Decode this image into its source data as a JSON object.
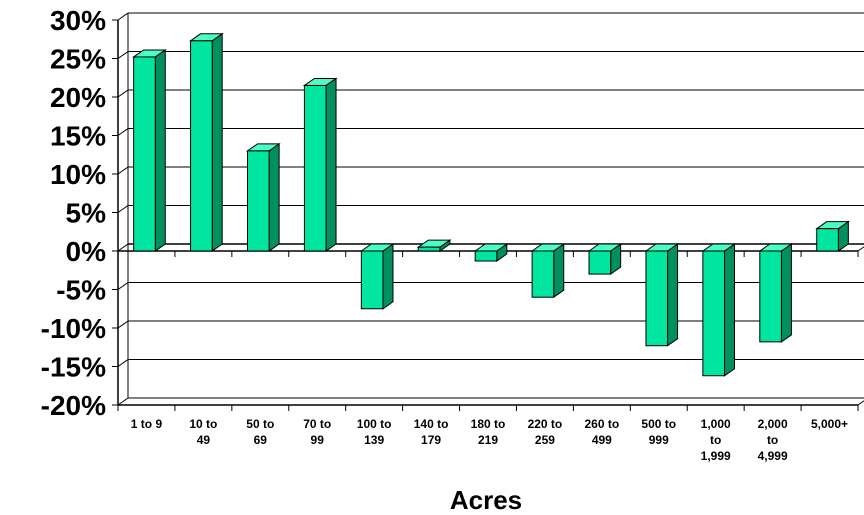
{
  "chart_data": {
    "type": "bar",
    "title": "",
    "xlabel": "Acres",
    "ylabel": "",
    "ylim": [
      -20,
      30
    ],
    "yticks": [
      "30%",
      "25%",
      "20%",
      "15%",
      "10%",
      "5%",
      "0%",
      "-5%",
      "-10%",
      "-15%",
      "-20%"
    ],
    "ytick_values": [
      30,
      25,
      20,
      15,
      10,
      5,
      0,
      -5,
      -10,
      -15,
      -20
    ],
    "categories": [
      [
        "1 to 9"
      ],
      [
        "10 to",
        "49"
      ],
      [
        "50 to",
        "69"
      ],
      [
        "70 to",
        "99"
      ],
      [
        "100 to",
        "139"
      ],
      [
        "140 to",
        "179"
      ],
      [
        "180 to",
        "219"
      ],
      [
        "220 to",
        "259"
      ],
      [
        "260 to",
        "499"
      ],
      [
        "500 to",
        "999"
      ],
      [
        "1,000",
        "to",
        "1,999"
      ],
      [
        "2,000",
        "to",
        "4,999"
      ],
      [
        "5,000+"
      ]
    ],
    "values": [
      25.2,
      27.3,
      13.0,
      21.5,
      -7.5,
      0.5,
      -1.3,
      -6.0,
      -3.0,
      -12.3,
      -16.2,
      -11.8,
      2.9
    ],
    "grid": true,
    "colors": {
      "bar_front": "#00e5a0",
      "bar_side": "#008f5e",
      "bar_top": "#4dfbc4",
      "outline": "#000000",
      "grid": "#000000"
    }
  }
}
